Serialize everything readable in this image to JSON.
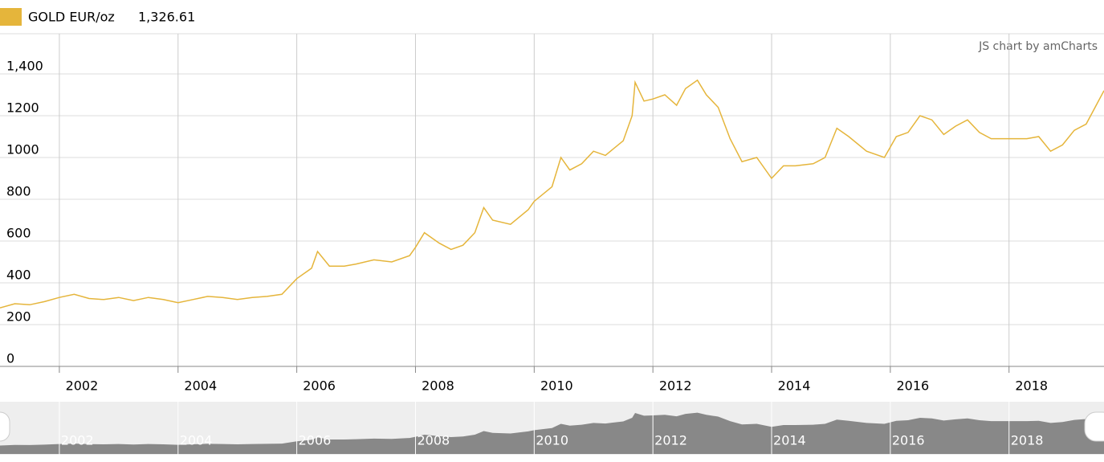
{
  "chart_data": {
    "type": "line",
    "credit": "JS chart by amCharts",
    "legend_value": {
      "value": 1326.61,
      "label": "1,326.61"
    },
    "x": [
      2001.0,
      2001.25,
      2001.5,
      2001.75,
      2002.0,
      2002.25,
      2002.5,
      2002.75,
      2003.0,
      2003.25,
      2003.5,
      2003.75,
      2004.0,
      2004.25,
      2004.5,
      2004.75,
      2005.0,
      2005.25,
      2005.5,
      2005.75,
      2006.0,
      2006.25,
      2006.35,
      2006.55,
      2006.8,
      2007.0,
      2007.3,
      2007.6,
      2007.9,
      2008.0,
      2008.15,
      2008.4,
      2008.6,
      2008.8,
      2009.0,
      2009.15,
      2009.3,
      2009.6,
      2009.9,
      2010.0,
      2010.3,
      2010.45,
      2010.6,
      2010.8,
      2011.0,
      2011.2,
      2011.5,
      2011.65,
      2011.7,
      2011.85,
      2012.0,
      2012.2,
      2012.4,
      2012.55,
      2012.75,
      2012.9,
      2013.1,
      2013.3,
      2013.5,
      2013.75,
      2014.0,
      2014.2,
      2014.4,
      2014.7,
      2014.9,
      2015.1,
      2015.3,
      2015.6,
      2015.9,
      2016.1,
      2016.3,
      2016.5,
      2016.7,
      2016.9,
      2017.1,
      2017.3,
      2017.5,
      2017.7,
      2018.0,
      2018.3,
      2018.5,
      2018.7,
      2018.9,
      2019.1,
      2019.3,
      2019.45,
      2019.6
    ],
    "series": [
      {
        "name": "GOLD EUR/oz",
        "color": "#e5b53b",
        "values": [
          280,
          300,
          295,
          310,
          330,
          345,
          325,
          320,
          330,
          315,
          330,
          320,
          305,
          320,
          335,
          330,
          320,
          330,
          335,
          345,
          420,
          470,
          550,
          480,
          480,
          490,
          510,
          500,
          530,
          570,
          640,
          590,
          560,
          580,
          640,
          760,
          700,
          680,
          750,
          790,
          860,
          1000,
          940,
          970,
          1030,
          1010,
          1080,
          1200,
          1360,
          1270,
          1280,
          1300,
          1250,
          1330,
          1370,
          1300,
          1240,
          1090,
          980,
          1000,
          900,
          960,
          960,
          970,
          1000,
          1140,
          1100,
          1030,
          1000,
          1100,
          1120,
          1200,
          1180,
          1110,
          1150,
          1180,
          1120,
          1090,
          1090,
          1090,
          1100,
          1030,
          1060,
          1130,
          1160,
          1240,
          1320
        ]
      }
    ],
    "xlim": [
      2001.0,
      2019.6
    ],
    "xticks": [
      2002,
      2004,
      2006,
      2008,
      2010,
      2012,
      2014,
      2016,
      2018
    ],
    "ylim": [
      0,
      1600
    ],
    "yticks": [
      0,
      200,
      400,
      600,
      800,
      1000,
      1200,
      {
        "value": 1400,
        "label": "1,400"
      }
    ],
    "grid": true
  }
}
